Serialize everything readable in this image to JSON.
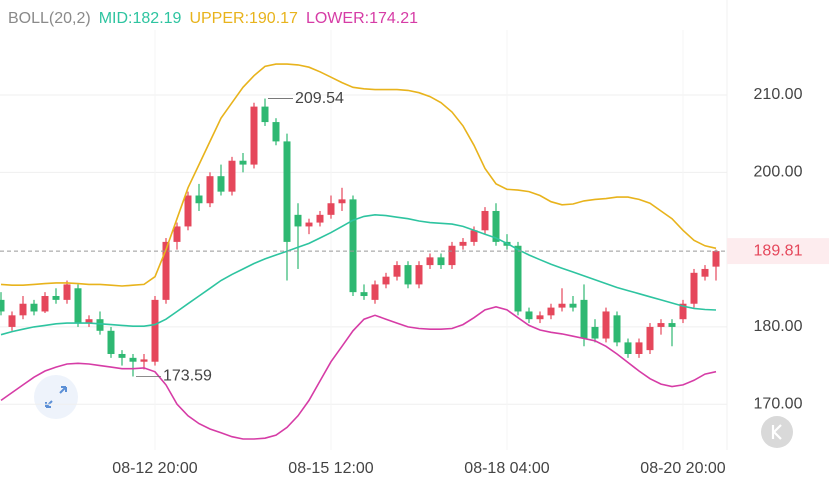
{
  "chart_data": {
    "type": "candlestick",
    "title": "BOLL(20,2)",
    "categories": [
      null,
      null,
      null,
      null,
      null,
      null,
      null,
      null,
      null,
      null,
      null,
      null,
      null,
      null,
      "08-12 20:00",
      null,
      null,
      null,
      null,
      null,
      null,
      null,
      null,
      null,
      null,
      null,
      null,
      null,
      null,
      null,
      "08-15 12:00",
      null,
      null,
      null,
      null,
      null,
      null,
      null,
      null,
      null,
      null,
      null,
      null,
      null,
      null,
      null,
      "08-18 04:00",
      null,
      null,
      null,
      null,
      null,
      null,
      null,
      null,
      null,
      null,
      null,
      null,
      null,
      null,
      null,
      "08-20 20:00",
      null,
      null,
      null
    ],
    "open": [
      183.5,
      180,
      181.5,
      183,
      182,
      184,
      183.5,
      185,
      180.5,
      181,
      179.5,
      176.5,
      176,
      175.5,
      175.5,
      183.5,
      191,
      193,
      197,
      196,
      199.5,
      197.5,
      201.5,
      201,
      208.5,
      206.5,
      204,
      194.5,
      193,
      193.5,
      194.5,
      196,
      196.5,
      184.5,
      183.5,
      185.5,
      186.5,
      188,
      185.5,
      188,
      189,
      188,
      190.5,
      191,
      192.5,
      195,
      191,
      190.5,
      182,
      181,
      181.5,
      182.5,
      183,
      183.5,
      180,
      178.5,
      181.5,
      178,
      176.5,
      177,
      180,
      180.5,
      181,
      183,
      186.5,
      187.8
    ],
    "high": [
      184.5,
      182,
      184,
      183.5,
      184.5,
      185,
      186,
      185.5,
      181.5,
      182,
      180,
      177,
      176.5,
      176.5,
      184,
      191.5,
      193.5,
      197.5,
      198.5,
      200,
      201,
      202,
      202.5,
      209,
      209.54,
      207,
      205,
      196,
      194,
      195,
      197,
      198,
      197,
      185.5,
      186,
      187,
      188.5,
      188.5,
      188.5,
      189.5,
      189.5,
      191,
      191.5,
      193,
      195.5,
      196,
      192,
      191,
      182.5,
      182,
      183,
      185,
      184,
      185.5,
      181,
      182.5,
      182,
      178.5,
      178.5,
      180.5,
      181,
      181,
      183.5,
      187.5,
      188,
      190
    ],
    "low": [
      181.5,
      179.5,
      181,
      181.5,
      181.8,
      183,
      183,
      180,
      180,
      179,
      176,
      175,
      173.59,
      174.5,
      175,
      183,
      190,
      192.5,
      195,
      195.5,
      197,
      197,
      200,
      200.5,
      206,
      203.5,
      186,
      187.5,
      192,
      193,
      194,
      195,
      184,
      183.5,
      183,
      185,
      186,
      185,
      185,
      187.5,
      187.5,
      187.5,
      190,
      190.5,
      192,
      190.5,
      190,
      181.5,
      180.5,
      180.5,
      181,
      182,
      182,
      177.5,
      178,
      178,
      177.5,
      176,
      176,
      176.5,
      179,
      177.5,
      180.5,
      182.5,
      186,
      186
    ],
    "close": [
      182,
      181.5,
      183,
      182,
      184,
      183.5,
      185.5,
      180.5,
      181,
      179.5,
      176.5,
      176,
      175.5,
      175.8,
      183.5,
      191,
      193,
      197,
      196,
      199.5,
      197.5,
      201.5,
      201,
      208.5,
      206.5,
      204,
      191,
      193,
      193.5,
      194.5,
      196,
      196.5,
      184.5,
      184,
      185.5,
      186.5,
      188,
      185.5,
      188,
      189,
      188,
      190.5,
      191,
      192.5,
      195,
      191,
      190.5,
      182,
      181,
      181.5,
      182.5,
      183,
      182.5,
      178.5,
      178.5,
      182,
      178,
      176.5,
      178,
      180,
      180.5,
      180,
      183,
      187,
      187.5,
      189.81
    ],
    "up_color": "#e5475b",
    "down_color": "#2eb872",
    "series": [
      {
        "name": "MID:182.19",
        "color": "#2ec4a0",
        "values": [
          179,
          179.4,
          179.7,
          180,
          180.2,
          180.4,
          180.5,
          180.5,
          180.5,
          180.4,
          180.3,
          180.2,
          180.1,
          180.1,
          180.3,
          181,
          182,
          183,
          184,
          185,
          186,
          186.8,
          187.5,
          188.2,
          188.8,
          189.3,
          189.8,
          190.3,
          190.8,
          191.5,
          192.2,
          193,
          193.8,
          194.3,
          194.5,
          194.4,
          194.2,
          194,
          193.7,
          193.5,
          193.4,
          193.3,
          193,
          192.5,
          192,
          191.5,
          190.8,
          190,
          189.3,
          188.7,
          188.1,
          187.6,
          187.1,
          186.6,
          186.1,
          185.6,
          185.1,
          184.7,
          184.3,
          183.9,
          183.5,
          183.1,
          182.7,
          182.4,
          182.25,
          182.19
        ]
      },
      {
        "name": "UPPER:190.17",
        "color": "#e8b31c",
        "values": [
          185.5,
          185.4,
          185.4,
          185.5,
          185.6,
          185.7,
          185.7,
          185.6,
          185.5,
          185.5,
          185.4,
          185.3,
          185.4,
          185.5,
          186.5,
          190,
          194,
          198,
          201,
          204,
          207,
          209,
          211,
          212.5,
          213.7,
          214,
          214,
          213.9,
          213.6,
          213,
          212.3,
          211.6,
          211,
          210.8,
          210.7,
          210.7,
          210.7,
          210.6,
          210.3,
          209.8,
          209,
          207.8,
          206,
          203.5,
          200.5,
          198.5,
          197.8,
          197.7,
          197.5,
          197,
          196.2,
          195.8,
          195.9,
          196.3,
          196.5,
          196.6,
          196.8,
          196.8,
          196.5,
          196,
          195,
          194,
          192.5,
          191.2,
          190.5,
          190.17
        ]
      },
      {
        "name": "LOWER:174.21",
        "color": "#d63ca6",
        "values": [
          170.5,
          171.5,
          172.5,
          173.5,
          174.3,
          174.8,
          175.2,
          175.3,
          175.2,
          175,
          174.8,
          174.6,
          174.6,
          174.7,
          174.2,
          172.5,
          170,
          168.5,
          167.5,
          166.8,
          166.3,
          165.8,
          165.5,
          165.5,
          165.6,
          166,
          167,
          168.5,
          170.5,
          173,
          175.5,
          177.5,
          179.5,
          181,
          181.5,
          181,
          180.5,
          180,
          179.8,
          179.7,
          179.7,
          179.8,
          180.3,
          181.2,
          182.2,
          182.6,
          182.2,
          181.2,
          180.2,
          179.6,
          179.3,
          179.1,
          178.8,
          178.5,
          178.2,
          177.5,
          176.5,
          175.4,
          174.3,
          173.3,
          172.6,
          172.3,
          172.5,
          173.1,
          173.9,
          174.21
        ]
      }
    ],
    "annotations": [
      {
        "index": 24,
        "value": 209.54,
        "label": "209.54"
      },
      {
        "index": 12,
        "value": 173.59,
        "label": "173.59"
      }
    ],
    "last_price": 189.81,
    "ylim": [
      164.08,
      218.41
    ],
    "yticks": [
      {
        "value": 170,
        "label": "170.00"
      },
      {
        "value": 180,
        "label": "180.00"
      },
      {
        "value": 200,
        "label": "200.00"
      },
      {
        "value": 210,
        "label": "210.00"
      }
    ],
    "grid": true
  }
}
